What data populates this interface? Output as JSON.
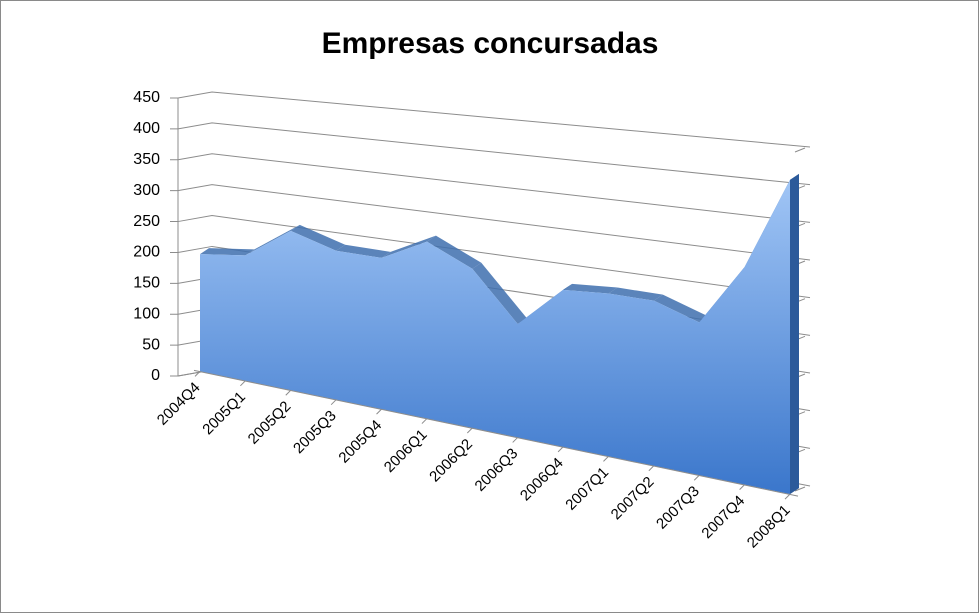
{
  "chart_data": {
    "type": "area3d",
    "title": "Empresas  concursadas",
    "categories": [
      "2004Q4",
      "2005Q1",
      "2005Q2",
      "2005Q3",
      "2005Q4",
      "2006Q1",
      "2006Q2",
      "2006Q3",
      "2006Q4",
      "2007Q1",
      "2007Q2",
      "2007Q3",
      "2007Q4",
      "2008Q1"
    ],
    "values": [
      190,
      200,
      250,
      230,
      230,
      265,
      235,
      165,
      225,
      230,
      230,
      210,
      295,
      420
    ],
    "color": "#4a86d8",
    "ylim": [
      0,
      450
    ],
    "yticks": [
      0,
      50,
      100,
      150,
      200,
      250,
      300,
      350,
      400,
      450
    ],
    "grid": true
  }
}
